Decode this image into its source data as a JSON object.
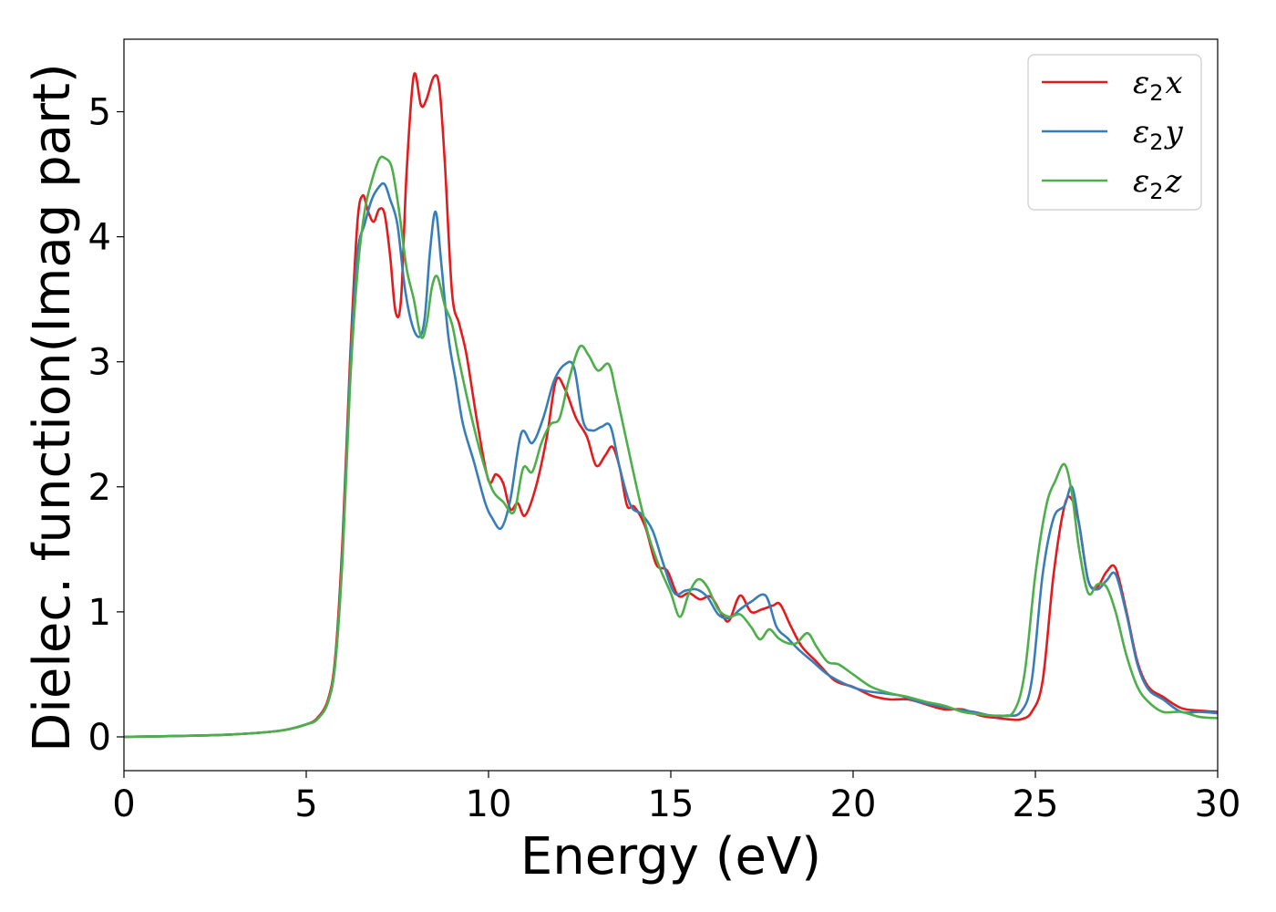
{
  "chart_data": {
    "type": "line",
    "title": "",
    "xlabel": "Energy (eV)",
    "ylabel": "Dielec. function(Imag part)",
    "xlim": [
      0,
      30
    ],
    "ylim": [
      -0.27,
      5.58
    ],
    "xticks": [
      0,
      5,
      10,
      15,
      20,
      25,
      30
    ],
    "xtick_labels": [
      "0",
      "5",
      "10",
      "15",
      "20",
      "25",
      "30"
    ],
    "yticks": [
      0,
      1,
      2,
      3,
      4,
      5
    ],
    "ytick_labels": [
      "0",
      "1",
      "2",
      "3",
      "4",
      "5"
    ],
    "grid": false,
    "legend_position": "top-right",
    "series": [
      {
        "name": "ε2x",
        "legend_base": "ε",
        "legend_sub": "2",
        "legend_suffix": "x",
        "color": "#e41a1c",
        "x": [
          0,
          2,
          3,
          4,
          4.5,
          5,
          5.3,
          5.6,
          5.8,
          6.0,
          6.2,
          6.4,
          6.55,
          6.7,
          6.85,
          7.0,
          7.15,
          7.3,
          7.45,
          7.6,
          7.75,
          7.95,
          8.15,
          8.3,
          8.5,
          8.65,
          8.8,
          9.0,
          9.2,
          9.4,
          9.7,
          10.0,
          10.2,
          10.4,
          10.6,
          10.8,
          11.0,
          11.3,
          11.6,
          11.85,
          12.1,
          12.4,
          12.7,
          12.95,
          13.2,
          13.4,
          13.6,
          13.8,
          14.0,
          14.3,
          14.6,
          14.9,
          15.2,
          15.5,
          15.8,
          16.1,
          16.4,
          16.6,
          16.9,
          17.2,
          17.5,
          17.8,
          18.0,
          18.3,
          18.6,
          19.0,
          19.5,
          20.0,
          20.5,
          21.0,
          21.5,
          22.0,
          22.5,
          23.0,
          23.5,
          24.0,
          24.3,
          24.6,
          24.9,
          25.2,
          25.5,
          25.8,
          26.0,
          26.2,
          26.45,
          26.7,
          26.95,
          27.2,
          27.5,
          27.8,
          28.1,
          28.5,
          29.0,
          29.5,
          30.0
        ],
        "values": [
          0,
          0.01,
          0.02,
          0.04,
          0.06,
          0.1,
          0.15,
          0.3,
          0.65,
          1.6,
          3.0,
          4.1,
          4.33,
          4.2,
          4.12,
          4.22,
          4.18,
          3.85,
          3.4,
          3.5,
          4.5,
          5.29,
          5.05,
          5.1,
          5.28,
          5.2,
          4.6,
          3.55,
          3.3,
          3.05,
          2.5,
          2.05,
          2.1,
          2.03,
          1.82,
          1.87,
          1.77,
          2.0,
          2.4,
          2.85,
          2.78,
          2.55,
          2.4,
          2.17,
          2.25,
          2.32,
          2.15,
          1.85,
          1.84,
          1.68,
          1.38,
          1.33,
          1.13,
          1.15,
          1.1,
          1.12,
          0.98,
          0.93,
          1.13,
          1.0,
          1.02,
          1.05,
          1.06,
          0.88,
          0.72,
          0.6,
          0.45,
          0.4,
          0.33,
          0.3,
          0.3,
          0.26,
          0.22,
          0.22,
          0.17,
          0.15,
          0.14,
          0.14,
          0.2,
          0.45,
          1.3,
          1.85,
          1.9,
          1.7,
          1.25,
          1.2,
          1.32,
          1.35,
          1.0,
          0.6,
          0.4,
          0.32,
          0.23,
          0.21,
          0.2
        ]
      },
      {
        "name": "ε2y",
        "legend_base": "ε",
        "legend_sub": "2",
        "legend_suffix": "y",
        "color": "#377eb8",
        "x": [
          0,
          2,
          3,
          4,
          4.5,
          5,
          5.3,
          5.6,
          5.8,
          6.0,
          6.2,
          6.4,
          6.6,
          6.8,
          7.0,
          7.15,
          7.3,
          7.5,
          7.7,
          7.9,
          8.1,
          8.25,
          8.4,
          8.55,
          8.7,
          8.9,
          9.1,
          9.3,
          9.6,
          9.9,
          10.1,
          10.35,
          10.6,
          10.9,
          11.2,
          11.5,
          11.8,
          12.1,
          12.35,
          12.6,
          12.85,
          13.1,
          13.35,
          13.6,
          13.9,
          14.2,
          14.5,
          14.8,
          15.1,
          15.4,
          15.7,
          16.0,
          16.3,
          16.6,
          16.9,
          17.2,
          17.6,
          17.9,
          18.2,
          18.5,
          18.9,
          19.3,
          19.8,
          20.3,
          20.8,
          21.3,
          21.8,
          22.3,
          22.8,
          23.3,
          23.8,
          24.2,
          24.6,
          24.9,
          25.2,
          25.5,
          25.8,
          26.0,
          26.2,
          26.45,
          26.7,
          26.95,
          27.2,
          27.5,
          27.8,
          28.1,
          28.5,
          29.0,
          29.5,
          30.0
        ],
        "values": [
          0,
          0.01,
          0.02,
          0.04,
          0.06,
          0.1,
          0.14,
          0.28,
          0.6,
          1.5,
          2.9,
          3.85,
          4.1,
          4.3,
          4.4,
          4.42,
          4.3,
          4.1,
          3.6,
          3.3,
          3.2,
          3.35,
          3.9,
          4.2,
          3.8,
          3.2,
          2.85,
          2.5,
          2.2,
          1.88,
          1.75,
          1.67,
          1.9,
          2.43,
          2.35,
          2.55,
          2.85,
          2.98,
          2.95,
          2.52,
          2.45,
          2.48,
          2.48,
          2.15,
          1.85,
          1.78,
          1.65,
          1.38,
          1.15,
          1.17,
          1.18,
          1.12,
          0.98,
          0.95,
          1.02,
          1.08,
          1.13,
          0.88,
          0.79,
          0.7,
          0.6,
          0.5,
          0.42,
          0.37,
          0.35,
          0.33,
          0.28,
          0.25,
          0.22,
          0.2,
          0.17,
          0.17,
          0.2,
          0.45,
          1.3,
          1.75,
          1.85,
          2.0,
          1.7,
          1.25,
          1.18,
          1.25,
          1.3,
          0.98,
          0.58,
          0.38,
          0.3,
          0.2,
          0.2,
          0.19
        ]
      },
      {
        "name": "ε2z",
        "legend_base": "ε",
        "legend_sub": "2",
        "legend_suffix": "z",
        "color": "#4daf4a",
        "x": [
          0,
          2,
          3,
          4,
          4.5,
          5,
          5.3,
          5.6,
          5.8,
          6.0,
          6.2,
          6.4,
          6.6,
          6.8,
          7.0,
          7.15,
          7.35,
          7.55,
          7.75,
          7.95,
          8.15,
          8.3,
          8.45,
          8.6,
          8.8,
          9.0,
          9.2,
          9.5,
          9.8,
          10.1,
          10.4,
          10.7,
          10.95,
          11.2,
          11.45,
          11.7,
          11.95,
          12.2,
          12.5,
          12.75,
          13.0,
          13.3,
          13.5,
          13.8,
          14.1,
          14.4,
          14.7,
          15.0,
          15.25,
          15.5,
          15.75,
          16.0,
          16.3,
          16.6,
          16.9,
          17.2,
          17.45,
          17.7,
          17.95,
          18.2,
          18.45,
          18.75,
          19.0,
          19.3,
          19.6,
          20.0,
          20.5,
          21.0,
          21.5,
          22.0,
          22.5,
          23.0,
          23.5,
          24.0,
          24.4,
          24.7,
          25.0,
          25.3,
          25.55,
          25.8,
          26.0,
          26.2,
          26.45,
          26.7,
          26.95,
          27.2,
          27.5,
          27.8,
          28.1,
          28.5,
          29.0,
          29.5,
          30.0
        ],
        "values": [
          0,
          0.01,
          0.02,
          0.04,
          0.06,
          0.1,
          0.14,
          0.28,
          0.6,
          1.45,
          2.8,
          3.7,
          4.2,
          4.45,
          4.62,
          4.63,
          4.55,
          4.2,
          3.75,
          3.5,
          3.2,
          3.3,
          3.6,
          3.68,
          3.45,
          3.3,
          3.0,
          2.6,
          2.25,
          1.98,
          1.88,
          1.8,
          2.15,
          2.12,
          2.35,
          2.5,
          2.55,
          2.85,
          3.12,
          3.05,
          2.93,
          2.98,
          2.75,
          2.35,
          1.95,
          1.6,
          1.35,
          1.15,
          0.96,
          1.15,
          1.26,
          1.2,
          1.02,
          0.96,
          0.98,
          0.88,
          0.78,
          0.86,
          0.79,
          0.75,
          0.75,
          0.83,
          0.72,
          0.6,
          0.58,
          0.5,
          0.4,
          0.35,
          0.32,
          0.28,
          0.25,
          0.2,
          0.18,
          0.17,
          0.2,
          0.5,
          1.3,
          1.85,
          2.05,
          2.18,
          1.95,
          1.5,
          1.15,
          1.22,
          1.2,
          1.0,
          0.65,
          0.4,
          0.28,
          0.2,
          0.2,
          0.16,
          0.15
        ]
      }
    ]
  }
}
